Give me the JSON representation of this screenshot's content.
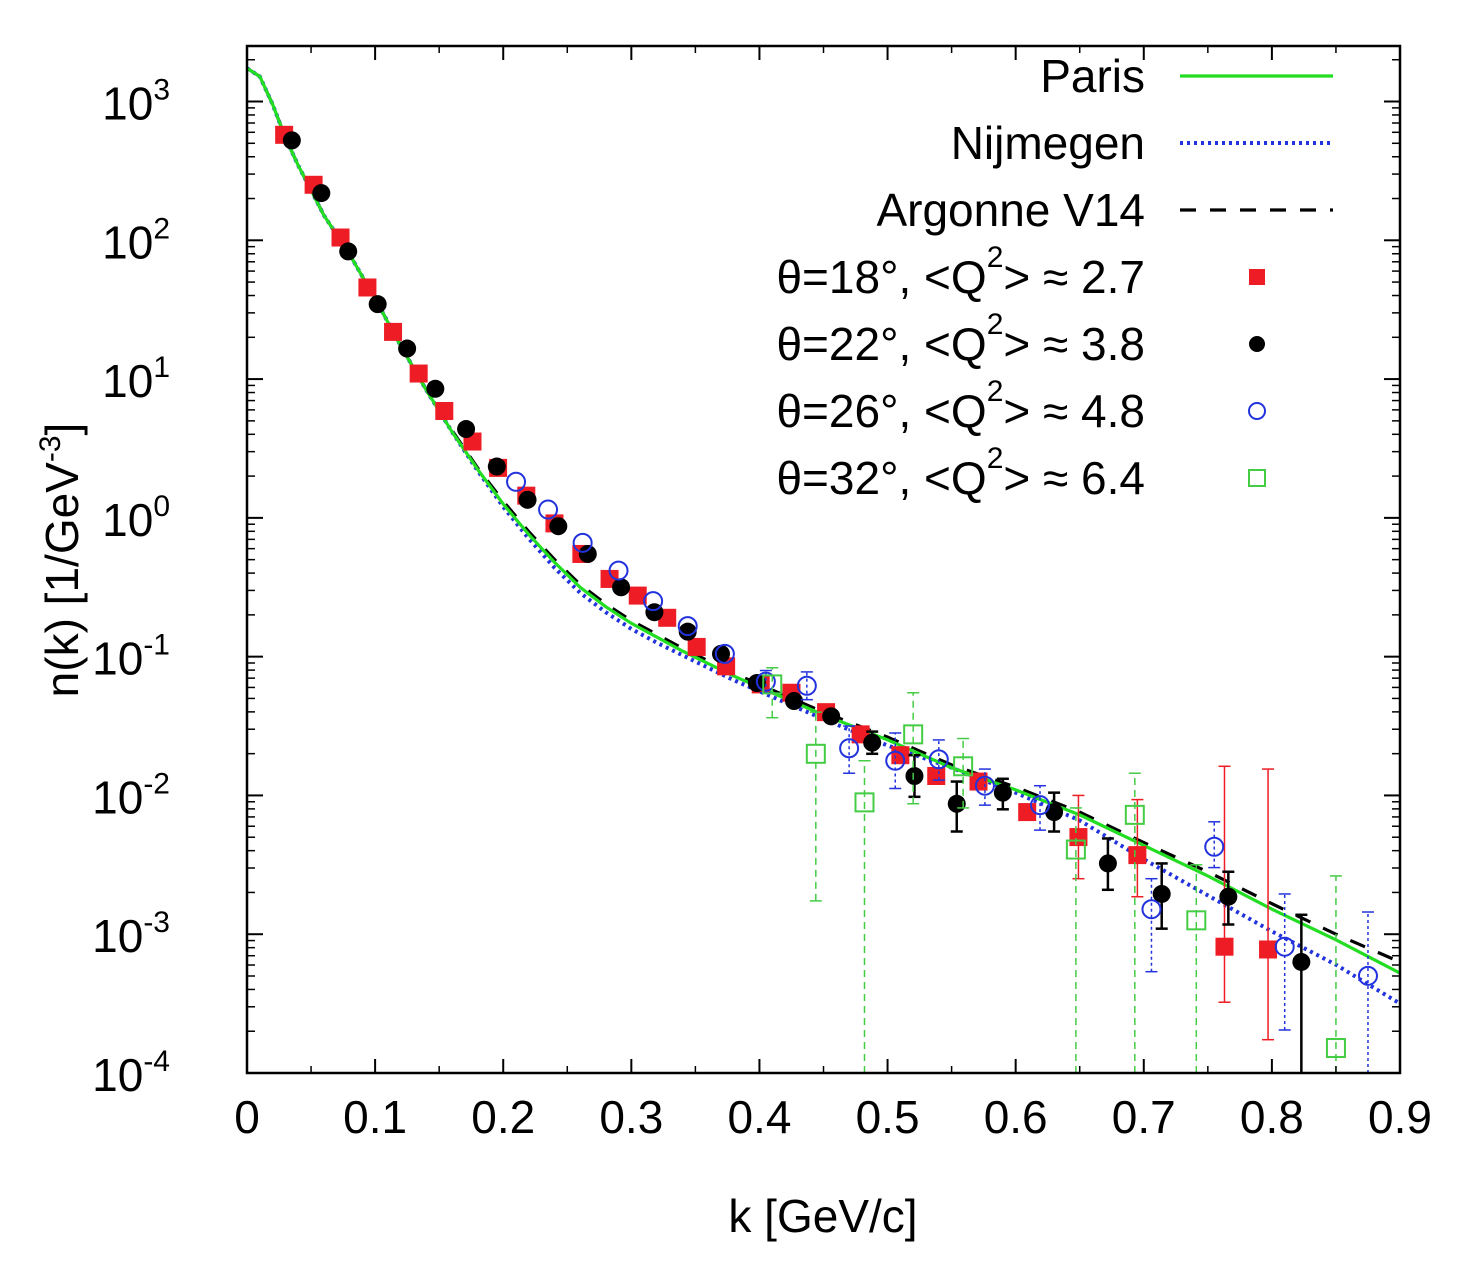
{
  "chart_data": {
    "type": "scatter",
    "title": "",
    "xlabel": "k [GeV/c]",
    "ylabel": {
      "main": "n(k) [1/GeV",
      "sup": "-3",
      "close": "]"
    },
    "xlim": [
      0,
      0.9
    ],
    "ylim_log10": [
      -4,
      3.4
    ],
    "xticks": [
      {
        "value": 0,
        "label": "0"
      },
      {
        "value": 0.1,
        "label": "0.1"
      },
      {
        "value": 0.2,
        "label": "0.2"
      },
      {
        "value": 0.3,
        "label": "0.3"
      },
      {
        "value": 0.4,
        "label": "0.4"
      },
      {
        "value": 0.5,
        "label": "0.5"
      },
      {
        "value": 0.6,
        "label": "0.6"
      },
      {
        "value": 0.7,
        "label": "0.7"
      },
      {
        "value": 0.8,
        "label": "0.8"
      },
      {
        "value": 0.9,
        "label": "0.9"
      }
    ],
    "yticks": [
      {
        "exp": 3,
        "base": "10",
        "sup": "3"
      },
      {
        "exp": 2,
        "base": "10",
        "sup": "2"
      },
      {
        "exp": 1,
        "base": "10",
        "sup": "1"
      },
      {
        "exp": 0,
        "base": "10",
        "sup": "0"
      },
      {
        "exp": -1,
        "base": "10",
        "sup": "-1"
      },
      {
        "exp": -2,
        "base": "10",
        "sup": "-2"
      },
      {
        "exp": -3,
        "base": "10",
        "sup": "-3"
      },
      {
        "exp": -4,
        "base": "10",
        "sup": "-4"
      }
    ],
    "curves": [
      {
        "name": "Paris",
        "color": "#22dd22",
        "style": "solid",
        "points": [
          [
            0,
            3.24
          ],
          [
            0.01,
            3.18
          ],
          [
            0.02,
            2.98
          ],
          [
            0.03,
            2.74
          ],
          [
            0.04,
            2.54
          ],
          [
            0.05,
            2.36
          ],
          [
            0.06,
            2.18
          ],
          [
            0.08,
            1.9
          ],
          [
            0.1,
            1.58
          ],
          [
            0.12,
            1.24
          ],
          [
            0.14,
            0.92
          ],
          [
            0.16,
            0.62
          ],
          [
            0.18,
            0.35
          ],
          [
            0.2,
            0.1
          ],
          [
            0.22,
            -0.12
          ],
          [
            0.24,
            -0.32
          ],
          [
            0.26,
            -0.5
          ],
          [
            0.28,
            -0.64
          ],
          [
            0.3,
            -0.76
          ],
          [
            0.32,
            -0.86
          ],
          [
            0.34,
            -0.96
          ],
          [
            0.36,
            -1.05
          ],
          [
            0.38,
            -1.14
          ],
          [
            0.4,
            -1.22
          ],
          [
            0.45,
            -1.42
          ],
          [
            0.5,
            -1.6
          ],
          [
            0.55,
            -1.8
          ],
          [
            0.6,
            -1.96
          ],
          [
            0.65,
            -2.14
          ],
          [
            0.7,
            -2.36
          ],
          [
            0.75,
            -2.58
          ],
          [
            0.8,
            -2.82
          ],
          [
            0.85,
            -3.04
          ],
          [
            0.9,
            -3.28
          ]
        ]
      },
      {
        "name": "Nijmegen",
        "color": "#2233dd",
        "style": "dotted",
        "points": [
          [
            0,
            3.24
          ],
          [
            0.01,
            3.18
          ],
          [
            0.02,
            2.98
          ],
          [
            0.03,
            2.74
          ],
          [
            0.04,
            2.54
          ],
          [
            0.05,
            2.36
          ],
          [
            0.06,
            2.18
          ],
          [
            0.08,
            1.9
          ],
          [
            0.1,
            1.58
          ],
          [
            0.12,
            1.24
          ],
          [
            0.14,
            0.92
          ],
          [
            0.16,
            0.62
          ],
          [
            0.18,
            0.34
          ],
          [
            0.2,
            0.08
          ],
          [
            0.22,
            -0.15
          ],
          [
            0.24,
            -0.36
          ],
          [
            0.26,
            -0.54
          ],
          [
            0.28,
            -0.68
          ],
          [
            0.3,
            -0.8
          ],
          [
            0.32,
            -0.9
          ],
          [
            0.34,
            -0.99
          ],
          [
            0.36,
            -1.08
          ],
          [
            0.38,
            -1.17
          ],
          [
            0.4,
            -1.25
          ],
          [
            0.45,
            -1.45
          ],
          [
            0.5,
            -1.64
          ],
          [
            0.55,
            -1.8
          ],
          [
            0.6,
            -1.98
          ],
          [
            0.65,
            -2.18
          ],
          [
            0.7,
            -2.46
          ],
          [
            0.75,
            -2.72
          ],
          [
            0.8,
            -2.98
          ],
          [
            0.85,
            -3.22
          ],
          [
            0.9,
            -3.5
          ]
        ]
      },
      {
        "name": "Argonne V14",
        "color": "#000000",
        "style": "dashed",
        "points": [
          [
            0,
            3.24
          ],
          [
            0.01,
            3.18
          ],
          [
            0.02,
            2.98
          ],
          [
            0.03,
            2.74
          ],
          [
            0.04,
            2.54
          ],
          [
            0.05,
            2.36
          ],
          [
            0.06,
            2.18
          ],
          [
            0.08,
            1.9
          ],
          [
            0.1,
            1.58
          ],
          [
            0.12,
            1.24
          ],
          [
            0.14,
            0.92
          ],
          [
            0.16,
            0.63
          ],
          [
            0.18,
            0.36
          ],
          [
            0.2,
            0.12
          ],
          [
            0.22,
            -0.1
          ],
          [
            0.24,
            -0.3
          ],
          [
            0.26,
            -0.48
          ],
          [
            0.28,
            -0.62
          ],
          [
            0.3,
            -0.74
          ],
          [
            0.32,
            -0.84
          ],
          [
            0.34,
            -0.94
          ],
          [
            0.36,
            -1.03
          ],
          [
            0.38,
            -1.12
          ],
          [
            0.4,
            -1.2
          ],
          [
            0.45,
            -1.4
          ],
          [
            0.5,
            -1.58
          ],
          [
            0.55,
            -1.78
          ],
          [
            0.6,
            -1.94
          ],
          [
            0.65,
            -2.12
          ],
          [
            0.7,
            -2.34
          ],
          [
            0.75,
            -2.55
          ],
          [
            0.8,
            -2.78
          ],
          [
            0.85,
            -3.0
          ],
          [
            0.9,
            -3.2
          ]
        ]
      }
    ],
    "series": [
      {
        "name": "θ=18°,  <Q²> ≈ 2.7",
        "legend": {
          "prefix": "θ=18°,  <Q",
          "sup": "2",
          "suffix": "> ≈ 2.7"
        },
        "marker": "filled-square",
        "color": "#ee1c24",
        "points": [
          [
            0.029,
            2.76,
            0,
            0
          ],
          [
            0.052,
            2.4,
            0,
            0
          ],
          [
            0.073,
            2.02,
            0,
            0
          ],
          [
            0.094,
            1.66,
            0,
            0
          ],
          [
            0.114,
            1.34,
            0,
            0
          ],
          [
            0.134,
            1.04,
            0,
            0
          ],
          [
            0.154,
            0.77,
            0,
            0
          ],
          [
            0.176,
            0.55,
            0,
            0
          ],
          [
            0.196,
            0.36,
            0,
            0
          ],
          [
            0.218,
            0.16,
            0,
            0
          ],
          [
            0.24,
            -0.04,
            0,
            0
          ],
          [
            0.261,
            -0.26,
            0,
            0
          ],
          [
            0.283,
            -0.44,
            0,
            0
          ],
          [
            0.305,
            -0.56,
            0,
            0
          ],
          [
            0.328,
            -0.72,
            0,
            0
          ],
          [
            0.351,
            -0.93,
            0,
            0
          ],
          [
            0.374,
            -1.07,
            0,
            0
          ],
          [
            0.401,
            -1.2,
            0,
            0
          ],
          [
            0.425,
            -1.26,
            0,
            0
          ],
          [
            0.452,
            -1.4,
            0,
            0
          ],
          [
            0.479,
            -1.56,
            0,
            0
          ],
          [
            0.51,
            -1.71,
            0,
            0
          ],
          [
            0.538,
            -1.86,
            0,
            0
          ],
          [
            0.571,
            -1.9,
            0,
            0
          ],
          [
            0.609,
            -2.12,
            0,
            0
          ],
          [
            0.649,
            -2.3,
            0.3,
            0.3
          ],
          [
            0.695,
            -2.43,
            0.3,
            0.4
          ],
          [
            0.763,
            -3.09,
            0.4,
            1.3
          ],
          [
            0.797,
            -3.11,
            0.65,
            1.3
          ]
        ]
      },
      {
        "name": "θ=22°,  <Q²> ≈ 3.8",
        "legend": {
          "prefix": "θ=22°,  <Q",
          "sup": "2",
          "suffix": "> ≈ 3.8"
        },
        "marker": "filled-circle",
        "color": "#000000",
        "points": [
          [
            0.035,
            2.72,
            0,
            0
          ],
          [
            0.058,
            2.34,
            0,
            0
          ],
          [
            0.079,
            1.92,
            0,
            0
          ],
          [
            0.102,
            1.54,
            0,
            0
          ],
          [
            0.125,
            1.22,
            0,
            0
          ],
          [
            0.147,
            0.93,
            0,
            0
          ],
          [
            0.171,
            0.64,
            0,
            0
          ],
          [
            0.195,
            0.37,
            0,
            0
          ],
          [
            0.219,
            0.13,
            0,
            0
          ],
          [
            0.243,
            -0.06,
            0,
            0
          ],
          [
            0.266,
            -0.26,
            0,
            0
          ],
          [
            0.292,
            -0.5,
            0,
            0
          ],
          [
            0.318,
            -0.68,
            0,
            0
          ],
          [
            0.344,
            -0.82,
            0,
            0
          ],
          [
            0.37,
            -0.98,
            0,
            0
          ],
          [
            0.398,
            -1.19,
            0,
            0
          ],
          [
            0.427,
            -1.32,
            0,
            0
          ],
          [
            0.456,
            -1.43,
            0,
            0
          ],
          [
            0.488,
            -1.62,
            0.08,
            0.08
          ],
          [
            0.521,
            -1.86,
            0.15,
            0.15
          ],
          [
            0.554,
            -2.06,
            0.2,
            0.16
          ],
          [
            0.59,
            -1.98,
            0.12,
            0.1
          ],
          [
            0.63,
            -2.12,
            0.14,
            0.14
          ],
          [
            0.672,
            -2.49,
            0.19,
            0.18
          ],
          [
            0.714,
            -2.71,
            0.25,
            0.22
          ],
          [
            0.766,
            -2.73,
            0.2,
            0.18
          ],
          [
            0.823,
            -3.2,
            0.9,
            0.34
          ]
        ]
      },
      {
        "name": "θ=26°,  <Q²> ≈ 4.8",
        "legend": {
          "prefix": "θ=26°,  <Q",
          "sup": "2",
          "suffix": "> ≈ 4.8"
        },
        "marker": "open-circle",
        "color": "#2233dd",
        "points": [
          [
            0.21,
            0.26,
            0,
            0
          ],
          [
            0.235,
            0.06,
            0,
            0
          ],
          [
            0.262,
            -0.18,
            0,
            0
          ],
          [
            0.29,
            -0.38,
            0,
            0
          ],
          [
            0.317,
            -0.6,
            0,
            0
          ],
          [
            0.344,
            -0.78,
            0,
            0
          ],
          [
            0.373,
            -0.98,
            0,
            0
          ],
          [
            0.405,
            -1.18,
            0.08,
            0.08
          ],
          [
            0.437,
            -1.21,
            0.1,
            0.1
          ],
          [
            0.47,
            -1.66,
            0.18,
            0.16
          ],
          [
            0.506,
            -1.75,
            0.2,
            0.2
          ],
          [
            0.54,
            -1.74,
            0.15,
            0.14
          ],
          [
            0.576,
            -1.93,
            0.14,
            0.12
          ],
          [
            0.619,
            -2.07,
            0.18,
            0.14
          ],
          [
            0.706,
            -2.82,
            0.45,
            0.22
          ],
          [
            0.755,
            -2.37,
            0.15,
            0.18
          ],
          [
            0.81,
            -3.09,
            0.6,
            0.38
          ],
          [
            0.875,
            -3.3,
            0.75,
            0.46
          ]
        ]
      },
      {
        "name": "θ=32°,  <Q²> ≈ 6.4",
        "legend": {
          "prefix": "θ=32°,  <Q",
          "sup": "2",
          "suffix": "> ≈ 6.4"
        },
        "marker": "open-square",
        "color": "#44cc44",
        "points": [
          [
            0.41,
            -1.2,
            0.24,
            0.12
          ],
          [
            0.444,
            -1.7,
            1.06,
            0.3
          ],
          [
            0.482,
            -2.05,
            2.1,
            0.3
          ],
          [
            0.52,
            -1.56,
            0.5,
            0.3
          ],
          [
            0.559,
            -1.79,
            0.3,
            0.2
          ],
          [
            0.647,
            -2.39,
            2.0,
            0.3
          ],
          [
            0.693,
            -2.14,
            2.0,
            0.3
          ],
          [
            0.741,
            -2.9,
            1.2,
            0.4
          ],
          [
            0.85,
            -3.82,
            0.3,
            1.24
          ]
        ]
      }
    ]
  }
}
